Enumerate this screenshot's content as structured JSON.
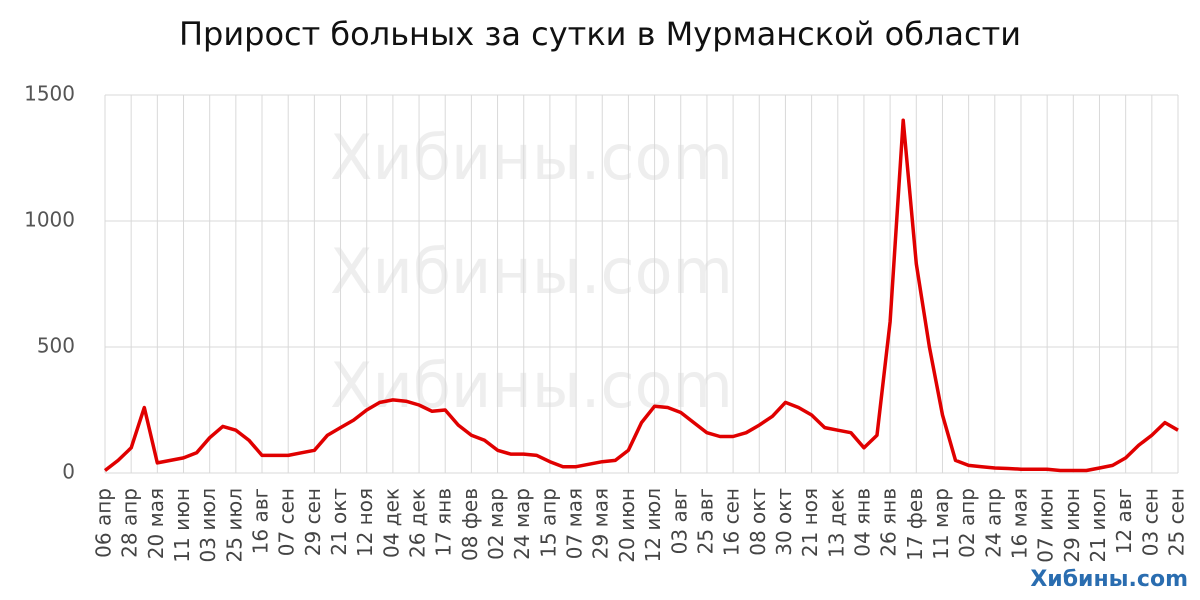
{
  "chart_data": {
    "type": "line",
    "title": "Прирост больных за сутки в Мурманской области",
    "watermark": "Хибины.com",
    "categories": [
      "06 апр",
      null,
      "28 апр",
      null,
      "20 мая",
      null,
      "11 июн",
      null,
      "03 июл",
      null,
      "25 июл",
      null,
      "16 авг",
      null,
      "07 сен",
      null,
      "29 сен",
      null,
      "21 окт",
      null,
      "12 ноя",
      null,
      "04 дек",
      null,
      "26 дек",
      null,
      "17 янв",
      null,
      "08 фев",
      null,
      "02 мар",
      null,
      "24 мар",
      null,
      "15 апр",
      null,
      "07 мая",
      null,
      "29 мая",
      null,
      "20 июн",
      null,
      "12 июл",
      null,
      "03 авг",
      null,
      "25 авг",
      null,
      "16 сен",
      null,
      "08 окт",
      null,
      "30 окт",
      null,
      "21 ноя",
      null,
      "13 дек",
      null,
      "04 янв",
      null,
      "26 янв",
      null,
      "17 фев",
      null,
      "11 мар",
      null,
      "02 апр",
      null,
      "24 апр",
      null,
      "16 мая",
      null,
      "07 июн",
      null,
      "29 июн",
      null,
      "21 июл",
      null,
      "12 авг",
      null,
      "03 сен",
      null,
      "25 сен"
    ],
    "series": [
      {
        "name": "Прирост",
        "color": "#e00000",
        "values": [
          10,
          50,
          100,
          260,
          40,
          50,
          60,
          80,
          140,
          185,
          170,
          130,
          70,
          70,
          70,
          80,
          90,
          150,
          180,
          210,
          250,
          280,
          290,
          285,
          270,
          245,
          250,
          190,
          150,
          130,
          90,
          75,
          75,
          70,
          45,
          25,
          25,
          35,
          45,
          50,
          90,
          200,
          265,
          260,
          240,
          200,
          160,
          145,
          145,
          160,
          190,
          225,
          280,
          260,
          230,
          180,
          170,
          160,
          100,
          150,
          600,
          1400,
          830,
          500,
          230,
          50,
          30,
          25,
          20,
          18,
          15,
          15,
          15,
          10,
          10,
          10,
          20,
          30,
          60,
          110,
          150,
          200,
          170
        ]
      }
    ],
    "ylim": [
      0,
      1500
    ],
    "yticks": [
      0,
      500,
      1000,
      1500
    ],
    "grid": true
  }
}
